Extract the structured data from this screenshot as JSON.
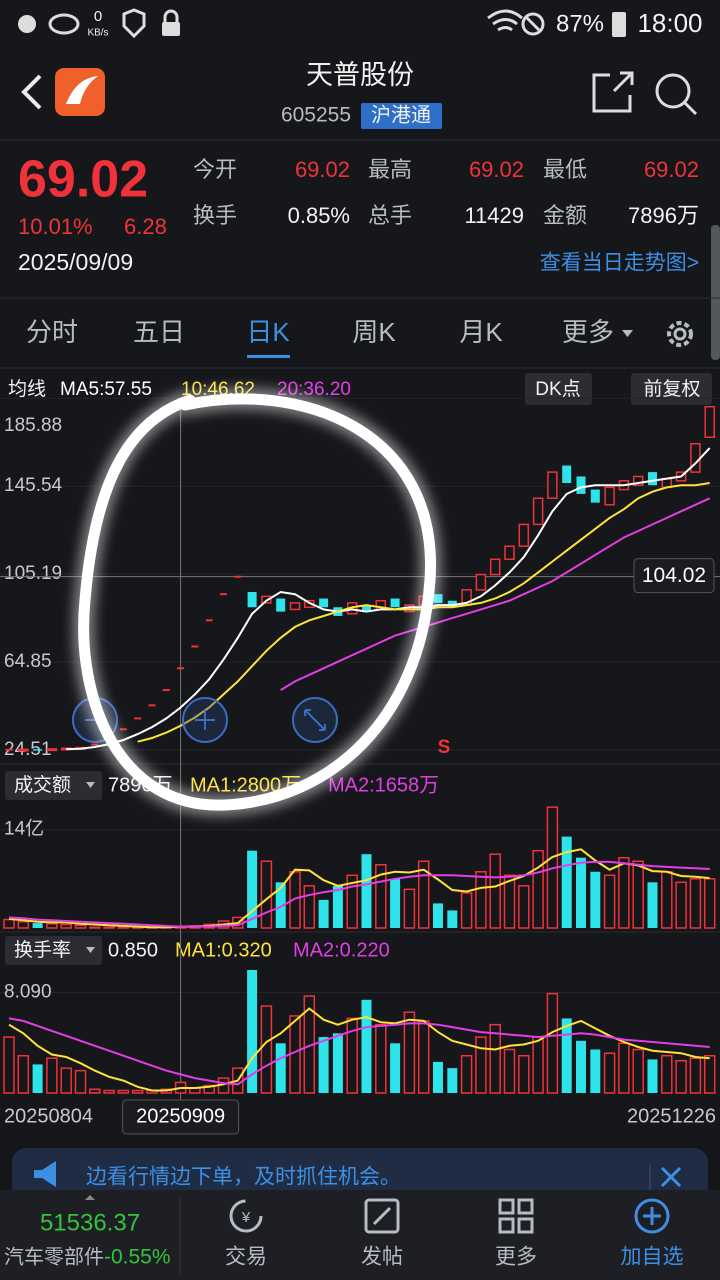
{
  "status_bar": {
    "net_speed": "0",
    "net_unit": "KB/s",
    "battery": "87%",
    "time": "18:00"
  },
  "header": {
    "name": "天普股份",
    "code": "605255",
    "badge": "沪港通"
  },
  "quote": {
    "price": "69.02",
    "change_pct": "10.01%",
    "change": "6.28",
    "date": "2025/09/09",
    "stats": [
      {
        "label": "今开",
        "value": "69.02"
      },
      {
        "label": "最高",
        "value": "69.02"
      },
      {
        "label": "最低",
        "value": "69.02"
      },
      {
        "label": "换手",
        "value": "0.85%"
      },
      {
        "label": "总手",
        "value": "11429"
      },
      {
        "label": "金额",
        "value": "7896万"
      }
    ],
    "link": "查看当日走势图>"
  },
  "tabs": [
    "分时",
    "五日",
    "日K",
    "周K",
    "月K",
    "更多"
  ],
  "chart_data": [
    {
      "type": "candlestick",
      "indicator": "均线",
      "buttons": [
        "DK点",
        "前复权"
      ],
      "up_color": "#f0323a",
      "down_color": "#2fe3ea",
      "open": [
        24.6,
        24.7,
        24.9,
        24.8,
        25.1,
        25.4,
        27,
        30,
        34,
        39,
        45,
        52,
        62,
        72,
        84,
        96,
        104,
        97,
        92,
        94,
        89,
        90,
        94,
        90,
        87,
        91,
        89,
        94,
        88,
        91,
        96,
        93,
        91,
        98,
        105,
        112,
        118,
        128,
        140,
        155,
        150,
        144,
        137,
        144,
        146,
        152,
        145,
        148,
        152,
        168
      ],
      "close": [
        24.6,
        24.8,
        24.7,
        25,
        25.3,
        25.6,
        27,
        30,
        34,
        39,
        45,
        52,
        62,
        72,
        84,
        96,
        104,
        90,
        95,
        88,
        92,
        93,
        90,
        86,
        92,
        88,
        93,
        90,
        91,
        95,
        92,
        90,
        98,
        105,
        112,
        118,
        128,
        140,
        152,
        147,
        142,
        138,
        145,
        148,
        150,
        146,
        149,
        152,
        165,
        182
      ],
      "series": [
        {
          "name": "MA5:57.55",
          "color": "#ffffff",
          "values": [
            null,
            null,
            null,
            null,
            24.9,
            25.1,
            25.9,
            27.2,
            29.1,
            31.8,
            35,
            39,
            44,
            50,
            57,
            66,
            76,
            87,
            93,
            97,
            96,
            92,
            89,
            88,
            89,
            88,
            89,
            89,
            90,
            90,
            91,
            91,
            92,
            95,
            100,
            106,
            113,
            123,
            134,
            142,
            145,
            146,
            146,
            146,
            147,
            148,
            149,
            150,
            156,
            163
          ]
        },
        {
          "name": "10:46.62",
          "color": "#ffe23a",
          "values": [
            null,
            null,
            null,
            null,
            null,
            null,
            null,
            null,
            null,
            28.3,
            30,
            32.5,
            35.6,
            39.4,
            44,
            50,
            56,
            63,
            70,
            76,
            81,
            84,
            86,
            88,
            90,
            91,
            90,
            89,
            89,
            89,
            90,
            90,
            91,
            92,
            94,
            97,
            101,
            106,
            111,
            116,
            121,
            126,
            131,
            135,
            140,
            143,
            145,
            146,
            146,
            147
          ]
        },
        {
          "name": "20:36.20",
          "color": "#e23ee6",
          "values": [
            null,
            null,
            null,
            null,
            null,
            null,
            null,
            null,
            null,
            null,
            null,
            null,
            null,
            null,
            null,
            null,
            null,
            null,
            null,
            52,
            56,
            59,
            62,
            65,
            68,
            71,
            74,
            77,
            79,
            81,
            83,
            85,
            87,
            89,
            91,
            93,
            96,
            99,
            102,
            106,
            110,
            114,
            118,
            122,
            125,
            128,
            131,
            134,
            137,
            140
          ]
        }
      ],
      "ylim": [
        19,
        186
      ],
      "yticks": [
        185.88,
        145.54,
        105.19,
        64.85,
        24.51
      ],
      "crosshair": 104.02,
      "signal": "S"
    },
    {
      "type": "bar",
      "selector": "成交额",
      "current": "7896万",
      "values": [
        1.2,
        0.9,
        0.7,
        0.6,
        0.5,
        0.4,
        0.1,
        0.1,
        0.1,
        0.1,
        0.1,
        0.2,
        0.2,
        0.3,
        0.5,
        1.0,
        1.5,
        11,
        9.5,
        6.5,
        8,
        6,
        4,
        6,
        7.5,
        10.5,
        9,
        7,
        5.5,
        9.5,
        3.5,
        2.5,
        5,
        8,
        10.5,
        7.5,
        6,
        11,
        17.2,
        13,
        10,
        8,
        7.5,
        10,
        9.5,
        6.5,
        8,
        6.5,
        7,
        7
      ],
      "series": [
        {
          "name": "MA1:2800万",
          "color": "#ffe23a",
          "values": [
            1.3,
            1.1,
            0.9,
            0.8,
            0.8,
            0.6,
            0.5,
            0.4,
            0.3,
            0.2,
            0.1,
            0.1,
            0.2,
            0.2,
            0.3,
            0.5,
            0.7,
            2.4,
            4.1,
            5.7,
            8.3,
            8.2,
            6.8,
            6.0,
            6.4,
            6.8,
            7.6,
            8.0,
            7.9,
            8.3,
            6.9,
            5.4,
            5.2,
            5.7,
            5.9,
            6.7,
            7.4,
            8.6,
            10.1,
            10.8,
            11.2,
            9.6,
            8.3,
            9.2,
            8.9,
            8.1,
            8.0,
            7.4,
            7.3,
            7.1
          ]
        },
        {
          "name": "MA2:1658万",
          "color": "#e23ee6",
          "values": [
            1.5,
            1.4,
            1.2,
            1.1,
            1.0,
            0.9,
            0.8,
            0.7,
            0.6,
            0.5,
            0.4,
            0.3,
            0.2,
            0.2,
            0.2,
            0.3,
            0.4,
            1.3,
            2.2,
            3.0,
            4.2,
            4.7,
            5.1,
            5.4,
            5.9,
            6.2,
            6.6,
            7.0,
            7.3,
            7.5,
            7.5,
            7.5,
            7.4,
            7.3,
            7.2,
            7.3,
            7.5,
            7.9,
            8.5,
            8.9,
            9.3,
            9.4,
            9.4,
            9.2,
            9.0,
            8.8,
            8.7,
            8.6,
            8.5,
            8.4
          ]
        }
      ],
      "ylim": [
        0,
        17.5
      ],
      "yticks": [
        {
          "value": 14,
          "label": "14亿"
        }
      ]
    },
    {
      "type": "bar",
      "selector": "换手率",
      "current": "0.850",
      "values": [
        4.5,
        3.0,
        2.3,
        2.8,
        2.0,
        1.8,
        0.3,
        0.2,
        0.2,
        0.2,
        0.2,
        0.3,
        0.85,
        0.4,
        0.6,
        1.2,
        2.0,
        9.9,
        7.0,
        4.0,
        6.2,
        7.8,
        4.5,
        4.8,
        6.0,
        7.5,
        5.5,
        4.0,
        6.5,
        5.8,
        2.5,
        2.0,
        3.0,
        4.5,
        5.5,
        3.5,
        3.0,
        4.5,
        8.0,
        6.0,
        4.2,
        3.5,
        3.2,
        4.0,
        3.5,
        2.7,
        3.0,
        2.6,
        2.8,
        3.0
      ],
      "series": [
        {
          "name": "MA1:0.320",
          "color": "#ffe23a",
          "values": [
            5.5,
            4.8,
            3.8,
            3.1,
            2.9,
            2.4,
            1.8,
            1.3,
            1.0,
            0.5,
            0.2,
            0.2,
            0.4,
            0.4,
            0.5,
            0.7,
            1.0,
            2.8,
            4.1,
            4.8,
            5.8,
            6.8,
            5.9,
            5.5,
            5.9,
            6.1,
            5.7,
            5.6,
            5.9,
            5.8,
            4.9,
            4.2,
            3.9,
            3.6,
            3.5,
            3.8,
            3.9,
            4.2,
            4.9,
            5.4,
            5.8,
            5.2,
            4.6,
            4.1,
            3.7,
            3.4,
            3.3,
            3.2,
            2.9,
            2.8
          ]
        },
        {
          "name": "MA2:0.220",
          "color": "#e23ee6",
          "values": [
            6.0,
            5.8,
            5.4,
            5.0,
            4.6,
            4.2,
            3.8,
            3.4,
            3.0,
            2.6,
            2.2,
            1.8,
            1.5,
            1.2,
            1.0,
            0.8,
            0.7,
            1.5,
            2.2,
            2.8,
            3.3,
            3.8,
            4.2,
            4.6,
            5.0,
            5.3,
            5.4,
            5.5,
            5.6,
            5.6,
            5.5,
            5.3,
            5.1,
            4.9,
            4.8,
            4.7,
            4.6,
            4.5,
            4.6,
            4.7,
            4.8,
            4.7,
            4.5,
            4.3,
            4.2,
            4.1,
            4.0,
            3.9,
            3.8,
            3.7
          ]
        }
      ],
      "ylim": [
        0,
        10.3
      ],
      "yticks": [
        {
          "value": 8.09,
          "label": "8.090"
        }
      ],
      "categories": [
        "20250804",
        null,
        null,
        null,
        null,
        null,
        null,
        null,
        null,
        null,
        null,
        null,
        "20250909",
        null,
        null,
        null,
        null,
        null,
        null,
        null,
        null,
        null,
        null,
        null,
        null,
        null,
        null,
        null,
        null,
        null,
        null,
        null,
        null,
        null,
        null,
        null,
        null,
        null,
        null,
        null,
        null,
        null,
        null,
        null,
        null,
        null,
        null,
        null,
        null,
        "20251226"
      ]
    }
  ],
  "banner": "边看行情边下单，及时抓住机会。",
  "footer": {
    "index_value": "51536.37",
    "index_name": "汽车零部件",
    "index_change": "-0.55%",
    "nav": [
      "交易",
      "发帖",
      "更多",
      "加自选"
    ]
  }
}
